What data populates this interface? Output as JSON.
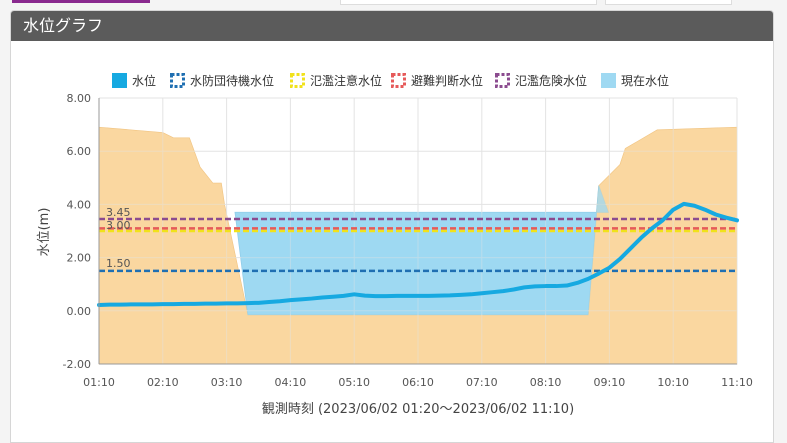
{
  "panel": {
    "title": "水位グラフ"
  },
  "chart_data": {
    "type": "line",
    "xlabel": "観測時刻",
    "xlabel_range": "(2023/06/02 01:20〜2023/06/02 11:10)",
    "ylabel": "水位(m)",
    "ylim": [
      -2,
      8
    ],
    "yticks": [
      "-2.00",
      "0.00",
      "2.00",
      "4.00",
      "6.00",
      "8.00"
    ],
    "xticks": [
      "01:10",
      "02:10",
      "03:10",
      "04:10",
      "05:10",
      "06:10",
      "07:10",
      "08:10",
      "09:10",
      "10:10",
      "11:10"
    ],
    "grid": true,
    "legend_position": "top",
    "legend": [
      {
        "name": "水位",
        "style": "solid",
        "color": "#16a9e1"
      },
      {
        "name": "水防団待機水位",
        "style": "dashed",
        "color": "#1f6fb2"
      },
      {
        "name": "氾濫注意水位",
        "style": "dashed",
        "color": "#f1e21b"
      },
      {
        "name": "避難判断水位",
        "style": "dashed",
        "color": "#e65a5a"
      },
      {
        "name": "氾濫危険水位",
        "style": "dashed",
        "color": "#8b4b8f"
      },
      {
        "name": "現在水位",
        "style": "fill",
        "color": "#9fd9f2"
      }
    ],
    "thresholds": [
      {
        "name": "水防団待機水位",
        "value": 1.5,
        "label": "1.50",
        "color": "#1f6fb2"
      },
      {
        "name": "氾濫注意水位",
        "value": 3.0,
        "label": "3.00",
        "color": "#f1e21b"
      },
      {
        "name": "避難判断水位",
        "value": 3.1,
        "label": "3.10",
        "color": "#e65a5a"
      },
      {
        "name": "氾濫危険水位",
        "value": 3.45,
        "label": "3.45",
        "color": "#8b4b8f"
      }
    ],
    "series": [
      {
        "name": "水位",
        "color": "#16a9e1",
        "x": [
          0,
          10,
          20,
          30,
          40,
          50,
          60,
          70,
          80,
          90,
          100,
          110,
          120,
          130,
          140,
          150,
          160,
          170,
          180,
          190,
          200,
          210,
          220,
          230,
          240,
          250,
          260,
          270,
          280,
          290,
          300,
          310,
          320,
          330,
          340,
          350,
          360,
          370,
          380,
          390,
          400,
          410,
          420,
          430,
          440,
          450,
          460,
          470,
          480,
          490,
          500,
          510,
          520,
          530,
          540,
          550,
          560,
          570,
          580,
          590,
          600
        ],
        "y": [
          0.22,
          0.23,
          0.23,
          0.24,
          0.24,
          0.24,
          0.25,
          0.25,
          0.26,
          0.26,
          0.27,
          0.27,
          0.28,
          0.28,
          0.29,
          0.3,
          0.33,
          0.36,
          0.4,
          0.43,
          0.46,
          0.5,
          0.53,
          0.56,
          0.62,
          0.57,
          0.55,
          0.55,
          0.56,
          0.56,
          0.56,
          0.56,
          0.57,
          0.58,
          0.6,
          0.62,
          0.66,
          0.7,
          0.74,
          0.8,
          0.88,
          0.92,
          0.93,
          0.93,
          0.95,
          1.05,
          1.2,
          1.4,
          1.62,
          1.95,
          2.35,
          2.75,
          3.1,
          3.4,
          3.8,
          4.02,
          3.95,
          3.8,
          3.62,
          3.5,
          3.4
        ]
      }
    ],
    "terrain": {
      "color": "#fad7a1",
      "x": [
        0,
        60,
        70,
        85,
        95,
        107,
        115,
        118,
        140,
        150,
        460,
        470,
        490,
        495,
        525,
        600
      ],
      "y": [
        6.9,
        6.7,
        6.5,
        6.5,
        5.4,
        4.8,
        4.8,
        4.0,
        -0.15,
        -0.15,
        -0.15,
        4.7,
        5.5,
        6.1,
        6.8,
        6.9
      ]
    },
    "current_level": {
      "name": "現在水位",
      "value": 3.7,
      "color": "#9fd9f2"
    }
  }
}
